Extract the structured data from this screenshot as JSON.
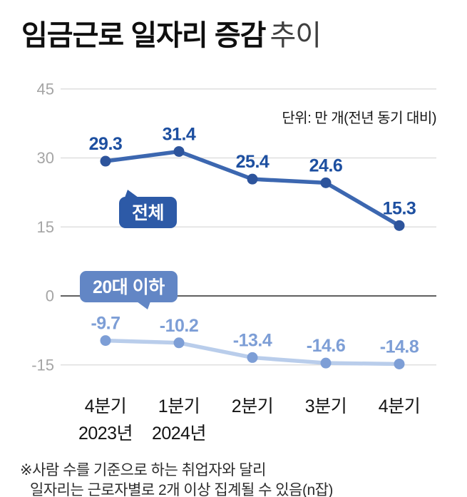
{
  "title": {
    "bold": "임금근로 일자리 증감",
    "light": "추이"
  },
  "unit_label": "단위: 만 개(전년 동기 대비)",
  "badges": {
    "total": "전체",
    "under20": "20대 이하"
  },
  "footnote": {
    "line1": "※사람 수를 기준으로 하는 취업자와 달리",
    "line2": "일자리는 근로자별로 2개 이상 집계될 수 있음(n잡)"
  },
  "chart_data": {
    "type": "line",
    "title": "임금근로 일자리 증감 추이",
    "unit": "만 개(전년 동기 대비)",
    "categories": [
      "4분기",
      "1분기",
      "2분기",
      "3분기",
      "4분기"
    ],
    "category_sublabels": [
      "2023년",
      "2024년",
      "",
      "",
      ""
    ],
    "series": [
      {
        "name": "전체",
        "values": [
          29.3,
          31.4,
          25.4,
          24.6,
          15.3
        ],
        "line_color": "#3c67b0",
        "point_color": "#2d549c",
        "label_color": "#1d4fa0"
      },
      {
        "name": "20대 이하",
        "values": [
          -9.7,
          -10.2,
          -13.4,
          -14.6,
          -14.8
        ],
        "line_color": "#b9cdeb",
        "point_color": "#7d9ed6",
        "label_color": "#7d9ed6"
      }
    ],
    "yticks": [
      45,
      30,
      15,
      0,
      -15
    ],
    "ylim": [
      -22,
      50
    ],
    "grid": true,
    "zero_axis_color": "#4a4a4a",
    "grid_color": "#d9d9d9",
    "legend_position": "inline-badges"
  }
}
